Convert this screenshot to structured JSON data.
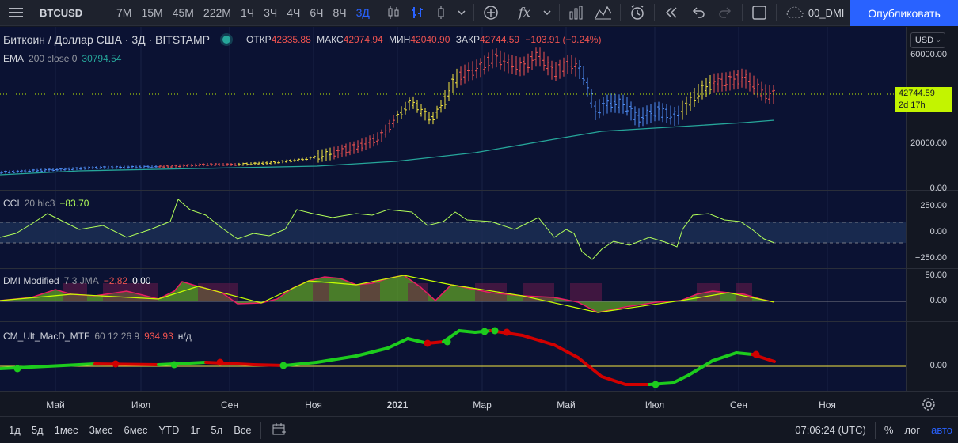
{
  "toolbar": {
    "symbol": "BTCUSD",
    "intervals": [
      "7М",
      "15М",
      "45М",
      "222М",
      "1Ч",
      "3Ч",
      "4Ч",
      "6Ч",
      "8Ч",
      "3Д"
    ],
    "active_interval": "3Д",
    "layout_name": "00_DMI",
    "publish_label": "Опубликовать",
    "icons": [
      "menu-icon",
      "candles-icon",
      "bars-icon",
      "hollow-candles-icon",
      "chevron-down-icon",
      "add-compare-icon",
      "indicators-icon",
      "templates-icon",
      "alert-icon",
      "replay-icon",
      "undo-icon",
      "redo-icon",
      "layout-icon",
      "cloud-icon"
    ]
  },
  "main_legend": {
    "title": "Биткоин / Доллар США · 3Д · BITSTAMP",
    "open_label": "ОТКР",
    "open": "42835.88",
    "high_label": "МАКС",
    "high": "42974.94",
    "low_label": "МИН",
    "low": "42040.90",
    "close_label": "ЗАКР",
    "close": "42744.59",
    "change": "−103.91 (−0.24%)"
  },
  "ema_legend": {
    "name": "EMA",
    "params": "200 close 0",
    "value": "30794.54"
  },
  "cci_legend": {
    "name": "CCI",
    "params": "20 hlc3",
    "value": "−83.70"
  },
  "dmi_legend": {
    "name": "DMI Modified",
    "params": "7 3 JMA",
    "value1": "−2.82",
    "value2": "0.00"
  },
  "macd_legend": {
    "name": "CM_Ult_MacD_MTF",
    "params": "60 12 26 9",
    "value": "934.93",
    "value2": "н/д"
  },
  "price_scale": {
    "currency": "USD",
    "main": [
      "60000.00",
      "20000.00",
      "0.00"
    ],
    "cci": [
      "250.00",
      "0.00",
      "−250.00"
    ],
    "dmi": [
      "50.00",
      "0.00"
    ],
    "macd": [
      "0.00"
    ],
    "tag_price": "42744.59",
    "tag_time": "2d 17h"
  },
  "time_axis": [
    "Май",
    "Июл",
    "Сен",
    "Ноя",
    "2021",
    "Мар",
    "Май",
    "Июл",
    "Сен",
    "Ноя"
  ],
  "bottom_bar": {
    "ranges": [
      "1д",
      "5д",
      "1мес",
      "3мес",
      "6мес",
      "YTD",
      "1г",
      "5л",
      "Все"
    ],
    "clock": "07:06:24 (UTC)",
    "percent_label": "%",
    "log_label": "лог",
    "auto_label": "авто"
  },
  "colors": {
    "background": "#0b1233",
    "ema": "#26a69a",
    "cci": "#b2ff59",
    "price_tag": "#c3f400",
    "macd_up": "#1dcc1d",
    "macd_down": "#d10000",
    "dmi_up": "#7ed321",
    "dmi_down": "#e91e63",
    "publish": "#2962ff"
  }
}
